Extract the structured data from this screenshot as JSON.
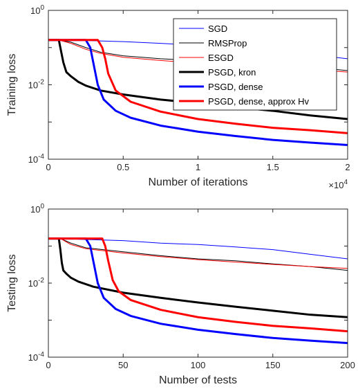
{
  "colors": {
    "SGD": "#0000ff",
    "RMSProp": "#000000",
    "ESGD": "#ff0000",
    "PSGD_kron": "#000000",
    "PSGD_dense": "#0000ff",
    "PSGD_dense_approx": "#ff0000"
  },
  "chart_data": [
    {
      "type": "line",
      "xlabel": "Number of iterations",
      "ylabel": "Training loss",
      "x_multiplier": "×10",
      "x_multiplier_exp": "4",
      "xlim": [
        0,
        20000
      ],
      "ylim": [
        0.0001,
        1
      ],
      "yscale": "log",
      "xticks": [
        0,
        5000,
        10000,
        15000,
        20000
      ],
      "xtick_labels": [
        "0",
        "0.5",
        "1",
        "1.5",
        "2"
      ],
      "ytick_labels": [
        {
          "base": "10",
          "exp": "-4"
        },
        {
          "base": "10",
          "exp": "-2"
        },
        {
          "base": "10",
          "exp": "0"
        }
      ],
      "legend": {
        "placement": "top-right",
        "entries": [
          {
            "label": "SGD",
            "color": "#0000ff",
            "width": 1
          },
          {
            "label": "RMSProp",
            "color": "#000000",
            "width": 1
          },
          {
            "label": "ESGD",
            "color": "#ff0000",
            "width": 1
          },
          {
            "label": "PSGD, kron",
            "color": "#000000",
            "width": 3
          },
          {
            "label": "PSGD, dense",
            "color": "#0000ff",
            "width": 3
          },
          {
            "label": "PSGD, dense, approx Hv",
            "color": "#ff0000",
            "width": 3
          }
        ]
      },
      "series": [
        {
          "name": "SGD",
          "color": "#0000ff",
          "width": 1,
          "x": [
            0,
            2500,
            5000,
            7500,
            10000,
            12500,
            15000,
            17500,
            20000
          ],
          "y": [
            0.16,
            0.155,
            0.145,
            0.13,
            0.115,
            0.1,
            0.085,
            0.065,
            0.05
          ]
        },
        {
          "name": "RMSProp",
          "color": "#000000",
          "width": 1,
          "x": [
            0,
            700,
            1500,
            2500,
            3500,
            5000,
            7500,
            10000,
            12500,
            15000,
            17500,
            20000
          ],
          "y": [
            0.16,
            0.16,
            0.14,
            0.1,
            0.075,
            0.06,
            0.05,
            0.045,
            0.04,
            0.035,
            0.03,
            0.024
          ]
        },
        {
          "name": "ESGD",
          "color": "#ff0000",
          "width": 1,
          "x": [
            0,
            700,
            1500,
            2500,
            3500,
            5000,
            7500,
            10000,
            12500,
            15000,
            17500,
            20000
          ],
          "y": [
            0.16,
            0.16,
            0.13,
            0.09,
            0.07,
            0.055,
            0.045,
            0.038,
            0.033,
            0.029,
            0.026,
            0.022
          ]
        },
        {
          "name": "PSGD, kron",
          "color": "#000000",
          "width": 3,
          "x": [
            0,
            700,
            800,
            1000,
            1200,
            1500,
            2000,
            2500,
            3500,
            5000,
            7500,
            10000,
            12500,
            15000,
            17500,
            20000
          ],
          "y": [
            0.16,
            0.16,
            0.1,
            0.04,
            0.022,
            0.017,
            0.012,
            0.0095,
            0.007,
            0.0055,
            0.004,
            0.0032,
            0.0025,
            0.002,
            0.0015,
            0.0012
          ]
        },
        {
          "name": "PSGD, dense",
          "color": "#0000ff",
          "width": 3,
          "x": [
            0,
            2500,
            2800,
            3000,
            3300,
            3700,
            4500,
            5500,
            7500,
            10000,
            12500,
            15000,
            17500,
            20000
          ],
          "y": [
            0.16,
            0.16,
            0.1,
            0.04,
            0.01,
            0.004,
            0.002,
            0.0013,
            0.0008,
            0.00055,
            0.00042,
            0.00033,
            0.00028,
            0.00024
          ]
        },
        {
          "name": "PSGD, dense, approx Hv",
          "color": "#ff0000",
          "width": 3,
          "x": [
            0,
            3300,
            3600,
            3800,
            4000,
            4500,
            5500,
            7500,
            10000,
            12500,
            15000,
            17500,
            20000
          ],
          "y": [
            0.16,
            0.16,
            0.1,
            0.05,
            0.02,
            0.007,
            0.0035,
            0.0019,
            0.0012,
            0.0009,
            0.0007,
            0.0006,
            0.0005
          ]
        }
      ]
    },
    {
      "type": "line",
      "xlabel": "Number of tests",
      "ylabel": "Testing loss",
      "xlim": [
        0,
        200
      ],
      "ylim": [
        0.0001,
        1
      ],
      "yscale": "log",
      "xticks": [
        0,
        50,
        100,
        150,
        200
      ],
      "xtick_labels": [
        "0",
        "50",
        "100",
        "150",
        "200"
      ],
      "ytick_labels": [
        {
          "base": "10",
          "exp": "-4"
        },
        {
          "base": "10",
          "exp": "-2"
        },
        {
          "base": "10",
          "exp": "0"
        }
      ],
      "series": [
        {
          "name": "SGD",
          "color": "#0000ff",
          "width": 1,
          "x": [
            0,
            10,
            25,
            50,
            75,
            100,
            125,
            150,
            175,
            200
          ],
          "y": [
            0.16,
            0.16,
            0.15,
            0.14,
            0.12,
            0.11,
            0.095,
            0.08,
            0.06,
            0.045
          ]
        },
        {
          "name": "RMSProp",
          "color": "#000000",
          "width": 1,
          "x": [
            0,
            8,
            15,
            25,
            50,
            75,
            100,
            125,
            150,
            175,
            200
          ],
          "y": [
            0.16,
            0.16,
            0.12,
            0.09,
            0.07,
            0.055,
            0.045,
            0.04,
            0.033,
            0.028,
            0.022
          ]
        },
        {
          "name": "ESGD",
          "color": "#ff0000",
          "width": 1,
          "x": [
            0,
            8,
            15,
            25,
            50,
            75,
            100,
            125,
            150,
            175,
            200
          ],
          "y": [
            0.16,
            0.16,
            0.11,
            0.085,
            0.065,
            0.052,
            0.043,
            0.037,
            0.032,
            0.028,
            0.025
          ]
        },
        {
          "name": "PSGD, kron",
          "color": "#000000",
          "width": 3,
          "x": [
            0,
            7,
            8,
            9,
            10,
            12,
            15,
            20,
            30,
            50,
            75,
            100,
            125,
            150,
            175,
            200
          ],
          "y": [
            0.16,
            0.16,
            0.08,
            0.035,
            0.022,
            0.018,
            0.014,
            0.011,
            0.008,
            0.0055,
            0.004,
            0.003,
            0.0023,
            0.0018,
            0.0014,
            0.0012
          ]
        },
        {
          "name": "PSGD, dense",
          "color": "#0000ff",
          "width": 3,
          "x": [
            0,
            25,
            28,
            30,
            33,
            37,
            45,
            55,
            75,
            100,
            125,
            150,
            175,
            200
          ],
          "y": [
            0.16,
            0.16,
            0.1,
            0.04,
            0.01,
            0.004,
            0.002,
            0.0013,
            0.0008,
            0.00055,
            0.00042,
            0.00033,
            0.00028,
            0.00024
          ]
        },
        {
          "name": "PSGD, dense, approx Hv",
          "color": "#ff0000",
          "width": 3,
          "x": [
            0,
            36,
            38,
            40,
            43,
            47,
            55,
            75,
            100,
            125,
            150,
            175,
            200
          ],
          "y": [
            0.16,
            0.16,
            0.1,
            0.04,
            0.012,
            0.006,
            0.0035,
            0.0019,
            0.0012,
            0.0009,
            0.0007,
            0.0006,
            0.0005
          ]
        }
      ]
    }
  ]
}
